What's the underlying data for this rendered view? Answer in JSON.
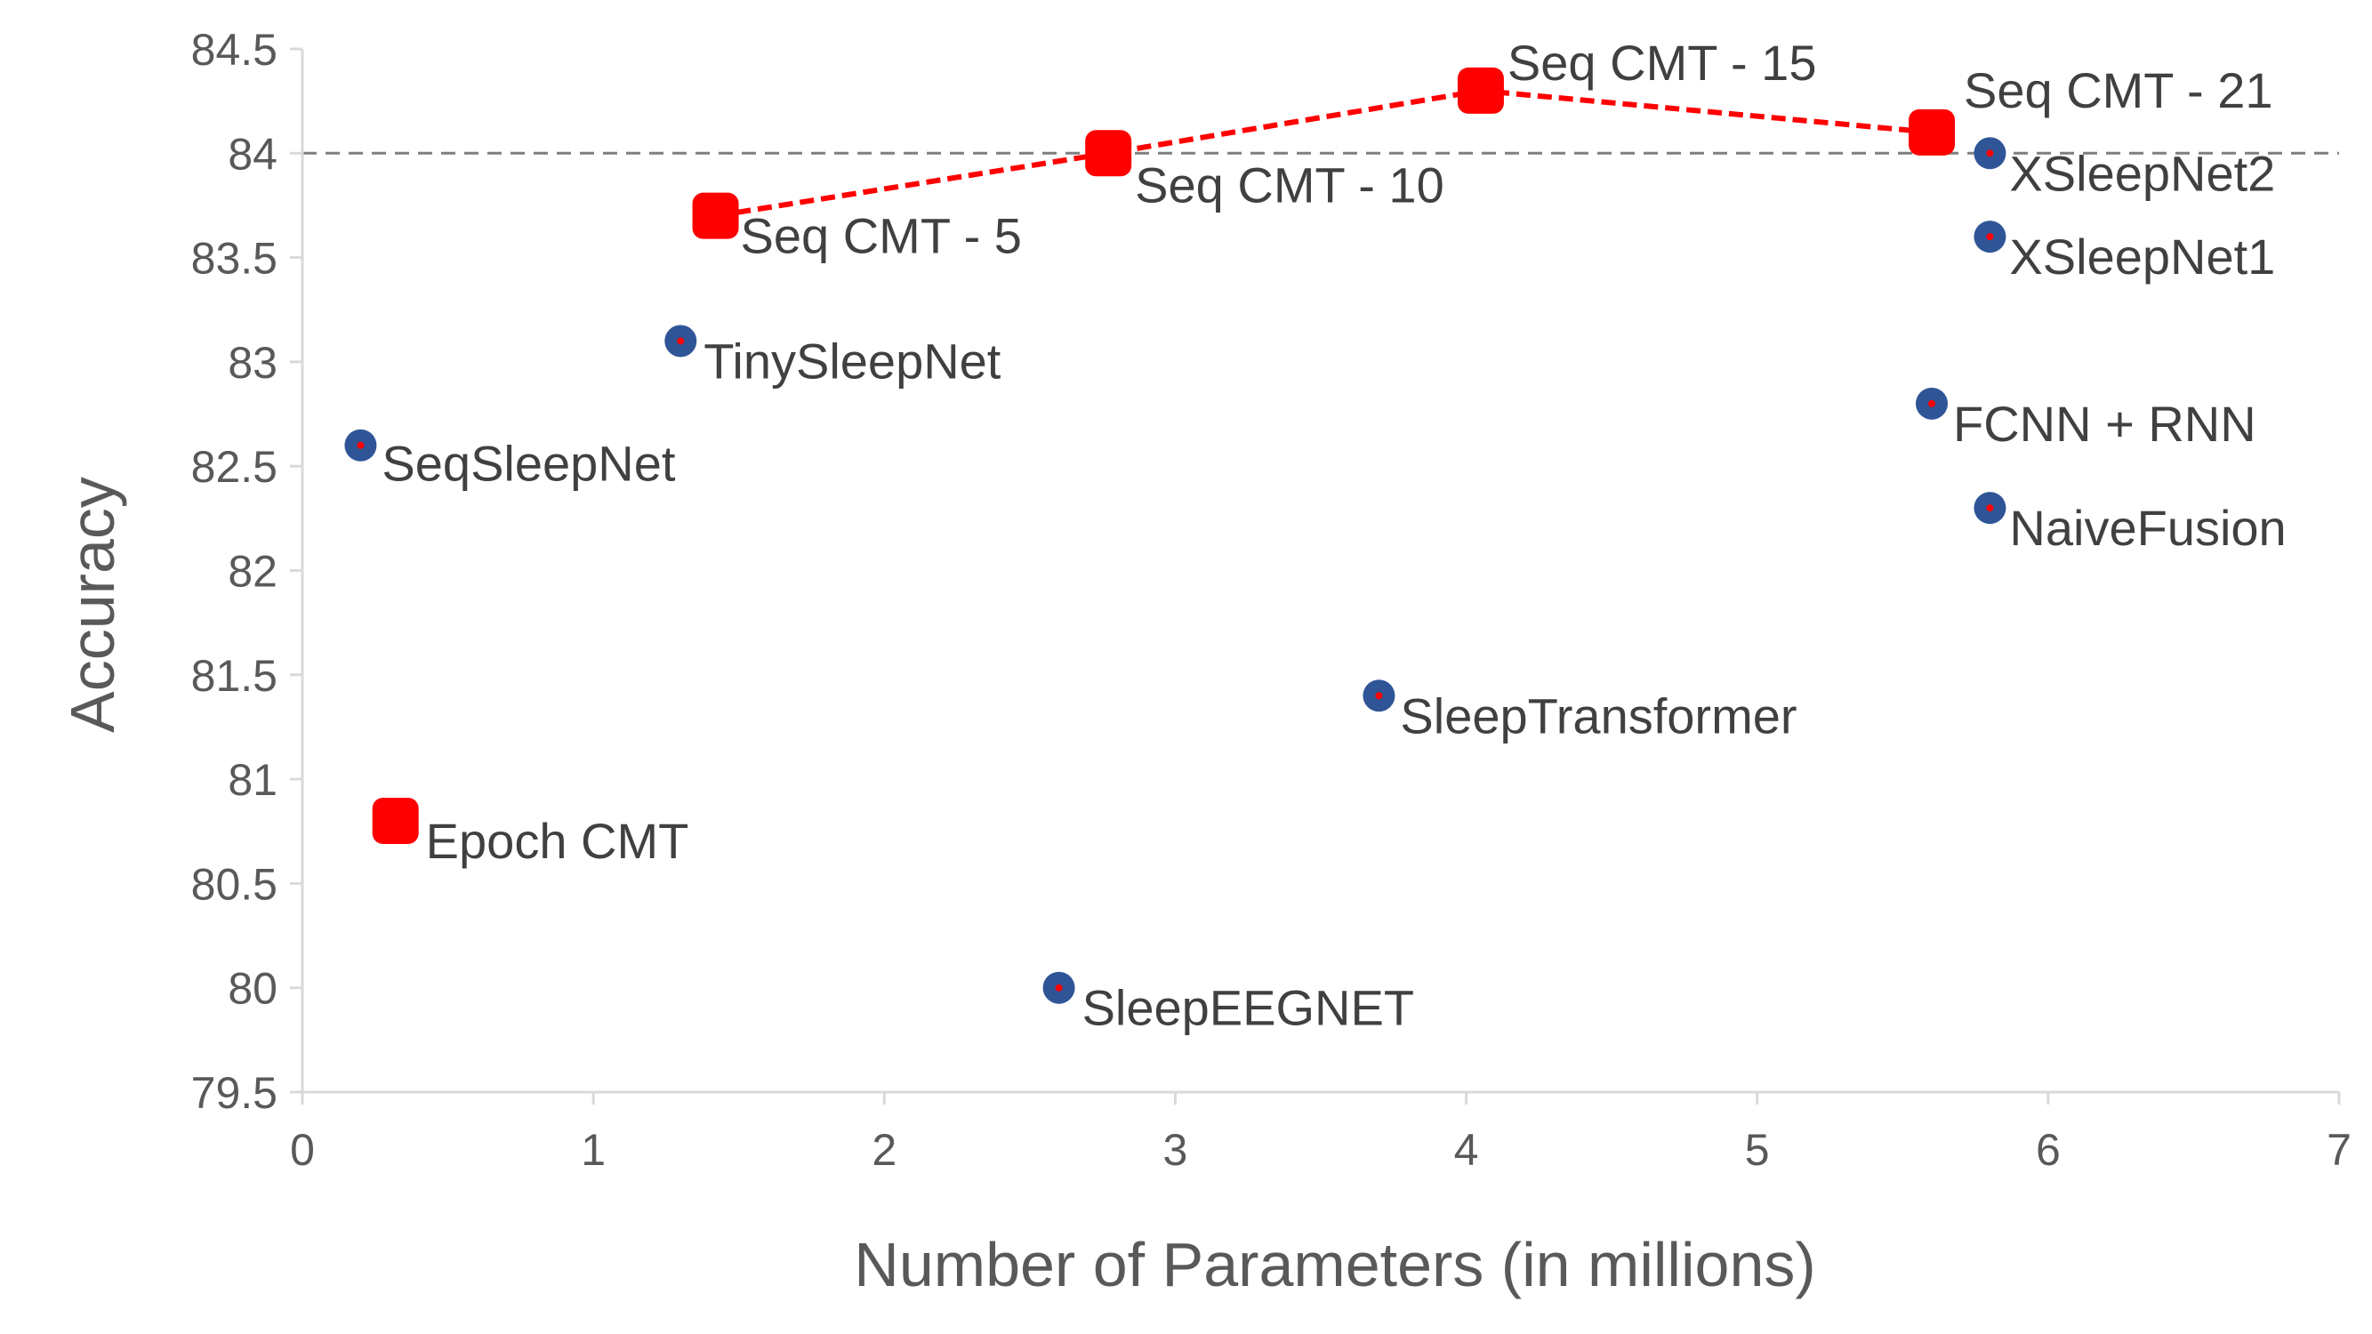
{
  "chart_data": {
    "type": "scatter",
    "title": "",
    "xlabel": "Number of Parameters (in millions)",
    "ylabel": "Accuracy",
    "xlim": [
      0,
      7
    ],
    "ylim": [
      79.5,
      84.5
    ],
    "xticks": [
      0,
      1,
      2,
      3,
      4,
      5,
      6,
      7
    ],
    "yticks": [
      79.5,
      80,
      80.5,
      81,
      81.5,
      82,
      82.5,
      83,
      83.5,
      84,
      84.5
    ],
    "reference_line": {
      "y": 84,
      "style": "dashed",
      "color": "#7f7f7f"
    },
    "grid": false,
    "legend": "none",
    "series": [
      {
        "marker": "rounded-square",
        "color": "#ff0000",
        "line": "dashed",
        "points": [
          {
            "label": "Seq CMT - 5",
            "x": 1.42,
            "y": 83.7
          },
          {
            "label": "Seq CMT - 10",
            "x": 2.77,
            "y": 84.0
          },
          {
            "label": "Seq CMT - 15",
            "x": 4.05,
            "y": 84.3
          },
          {
            "label": "Seq CMT - 21",
            "x": 5.6,
            "y": 84.1
          }
        ]
      },
      {
        "marker": "rounded-square",
        "color": "#ff0000",
        "line": "none",
        "points": [
          {
            "label": "Epoch CMT",
            "x": 0.32,
            "y": 80.8
          }
        ]
      },
      {
        "marker": "circle",
        "color": "#2f5597",
        "center_color": "#ff0000",
        "line": "none",
        "points": [
          {
            "label": "SeqSleepNet",
            "x": 0.2,
            "y": 82.6
          },
          {
            "label": "TinySleepNet",
            "x": 1.3,
            "y": 83.1
          },
          {
            "label": "SleepEEGNET",
            "x": 2.6,
            "y": 80.0
          },
          {
            "label": "SleepTransformer",
            "x": 3.7,
            "y": 81.4
          },
          {
            "label": "FCNN + RNN",
            "x": 5.6,
            "y": 82.8
          },
          {
            "label": "XSleepNet2",
            "x": 5.8,
            "y": 84.0
          },
          {
            "label": "XSleepNet1",
            "x": 5.8,
            "y": 83.6
          },
          {
            "label": "NaiveFusion",
            "x": 5.8,
            "y": 82.3
          }
        ]
      }
    ]
  }
}
